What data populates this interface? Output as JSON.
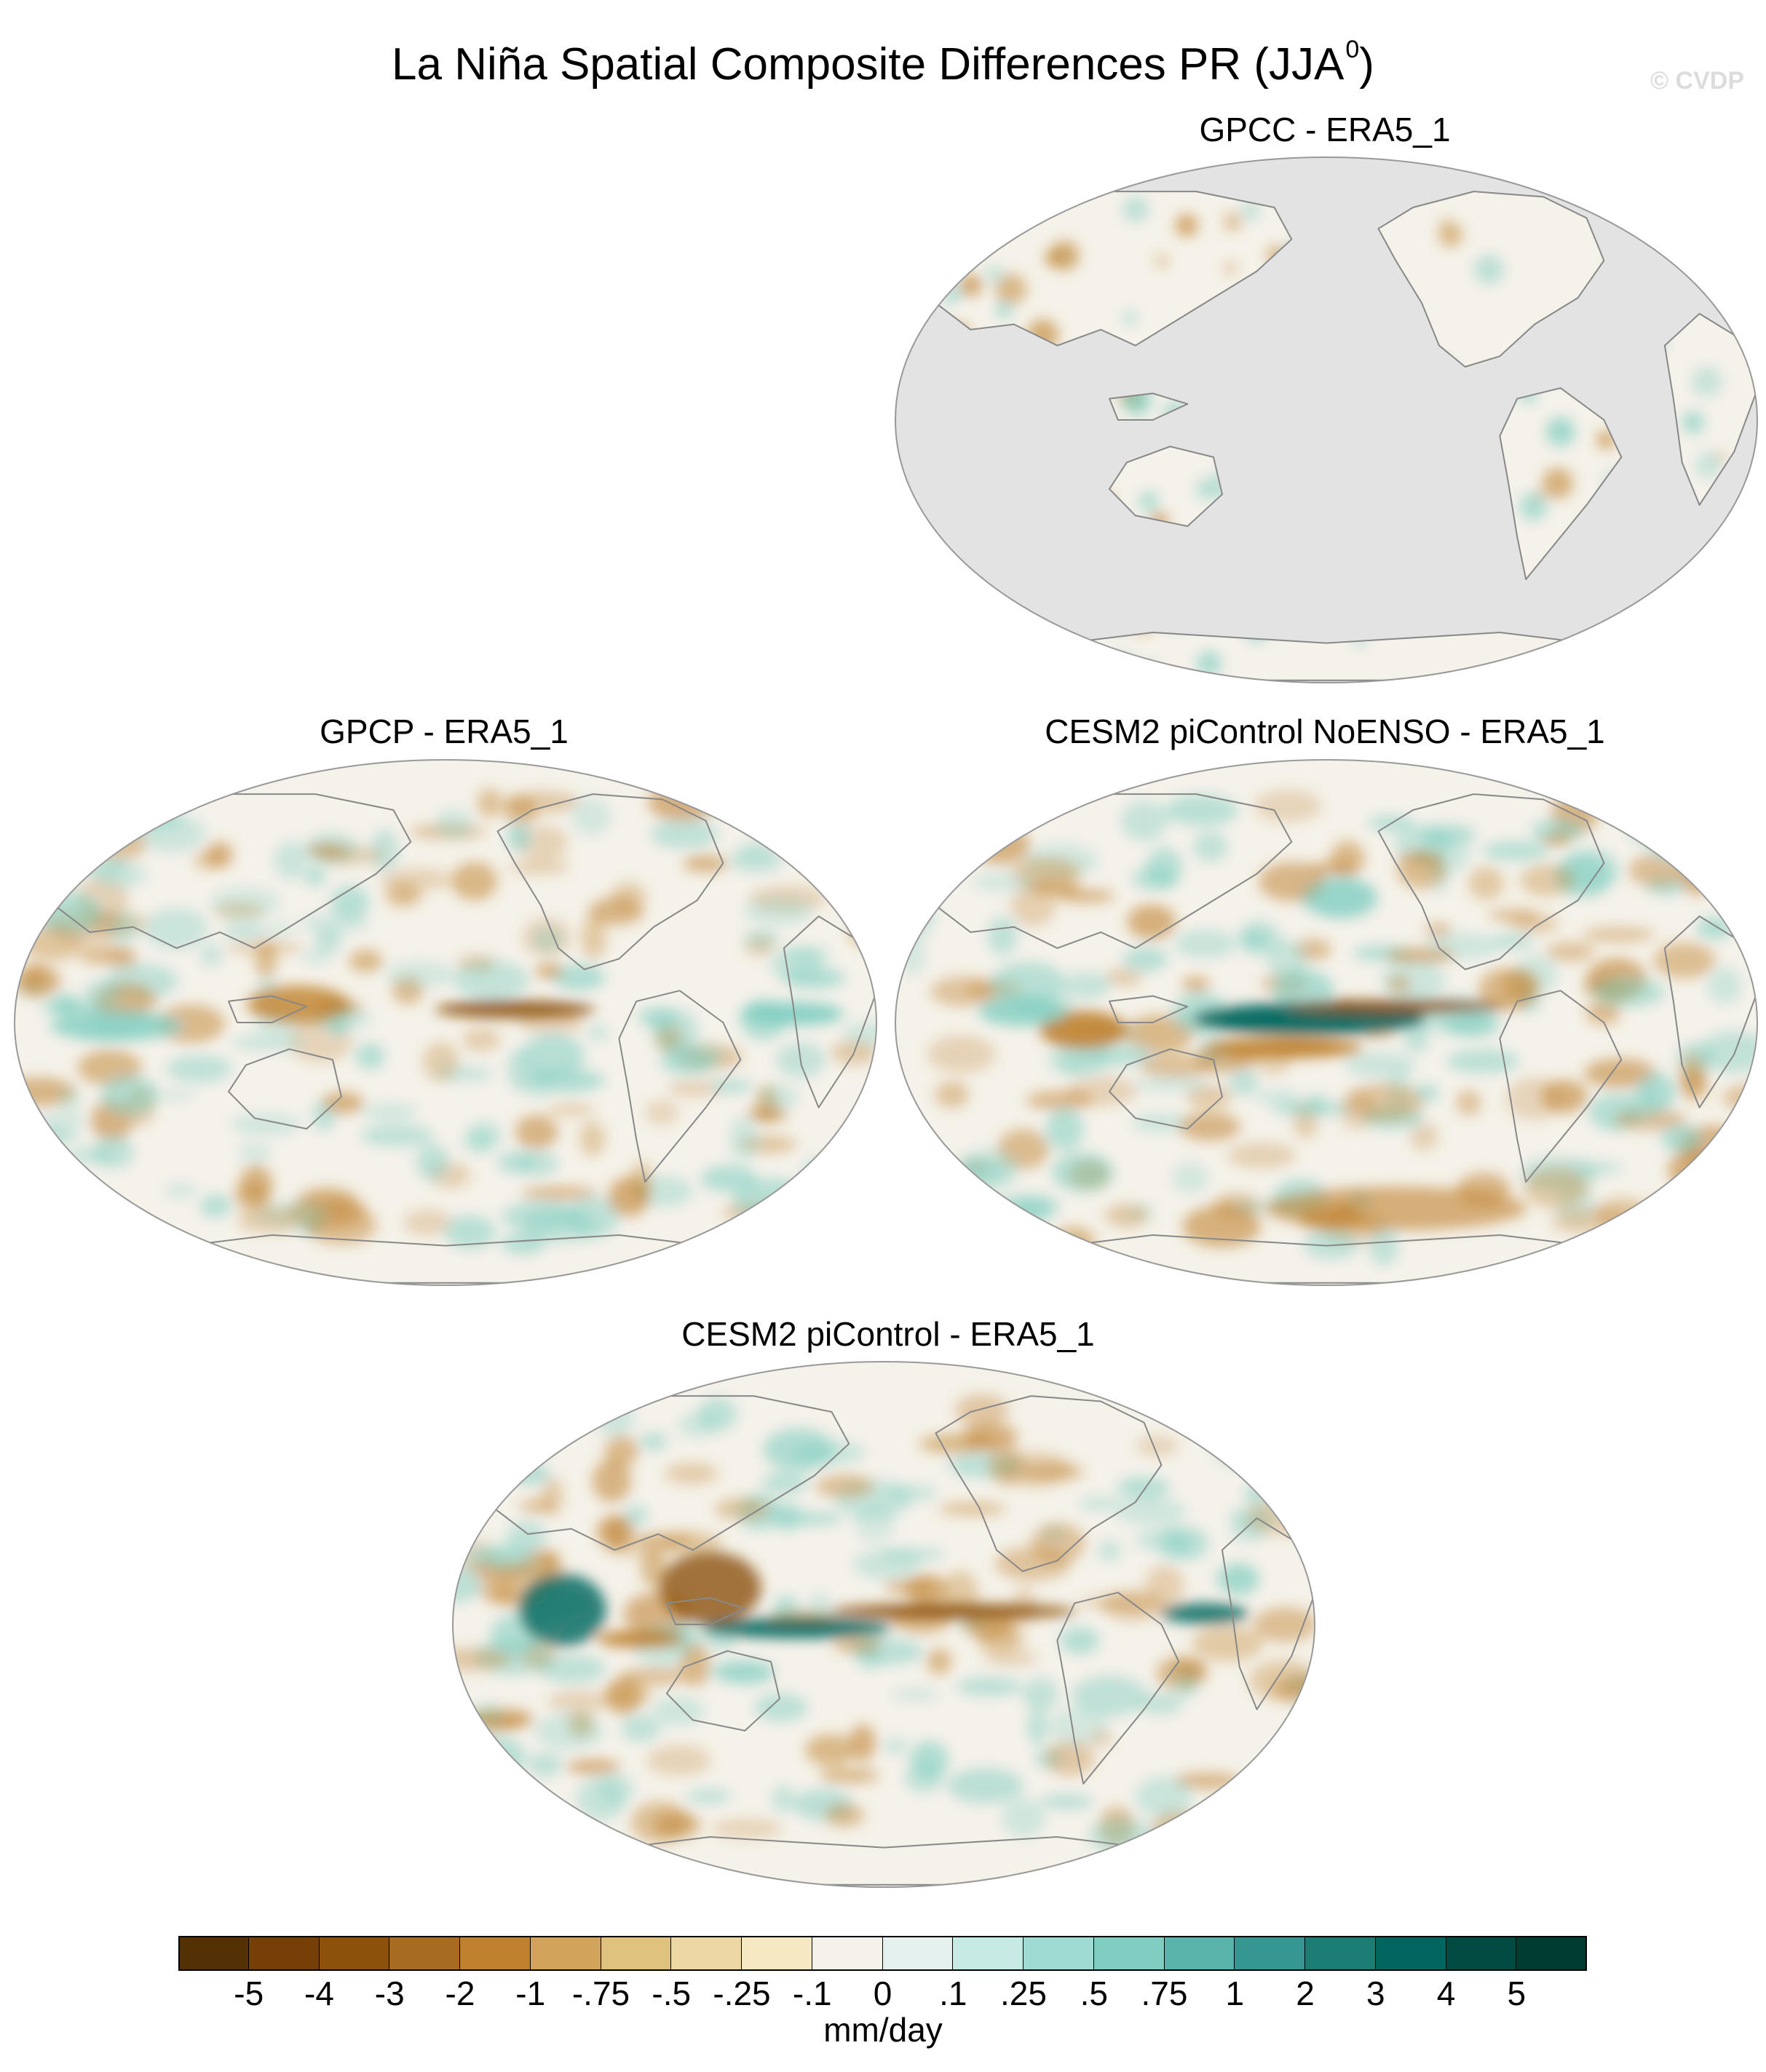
{
  "title": "La Niña Spatial Composite Differences PR (JJA",
  "title_superscript": "0",
  "title_suffix": ")",
  "watermark": "© CVDP",
  "panels": [
    {
      "id": "gpcc",
      "label": "GPCC - ERA5_1",
      "ocean_masked": true
    },
    {
      "id": "gpcp",
      "label": "GPCP - ERA5_1",
      "ocean_masked": false
    },
    {
      "id": "cesm2-noenso",
      "label": "CESM2 piControl NoENSO - ERA5_1",
      "ocean_masked": false
    },
    {
      "id": "cesm2",
      "label": "CESM2 piControl - ERA5_1",
      "ocean_masked": false
    }
  ],
  "colorbar": {
    "units": "mm/day",
    "tick_labels": [
      "-5",
      "-4",
      "-3",
      "-2",
      "-1",
      "-.75",
      "-.5",
      "-.25",
      "-.1",
      "0",
      ".1",
      ".25",
      ".5",
      ".75",
      "1",
      "2",
      "3",
      "4",
      "5"
    ],
    "colors": [
      "#543005",
      "#754008",
      "#8c510a",
      "#a76c1f",
      "#bf812d",
      "#d2a35b",
      "#dfc27d",
      "#ecd7a5",
      "#f6e8c3",
      "#f5f2ea",
      "#e4f1ee",
      "#c7eae5",
      "#9fdbd2",
      "#80cdc1",
      "#5ab4ac",
      "#35978f",
      "#1b7d74",
      "#01665e",
      "#014b42",
      "#003c30"
    ]
  },
  "map_style": {
    "ocean_mask_color": "#e3e3e3",
    "neutral_color": "#f5f2ea",
    "coastline_color": "#888888",
    "dry_color": "#bf812d",
    "dry_strong_color": "#8c510a",
    "wet_color": "#80cdc1",
    "wet_strong_color": "#01665e"
  }
}
